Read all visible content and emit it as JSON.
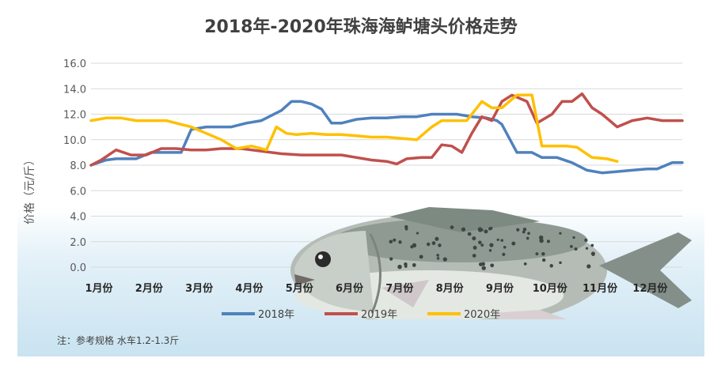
{
  "chart_data": {
    "type": "line",
    "title": "2018年-2020年珠海海鲈塘头价格走势",
    "ylabel": "价格（元/斤）",
    "xlabel": "",
    "ylim": [
      0,
      16
    ],
    "yticks": [
      "0.0",
      "2.0",
      "4.0",
      "6.0",
      "8.0",
      "10.0",
      "12.0",
      "14.0",
      "16.0"
    ],
    "categories": [
      "1月份",
      "2月份",
      "3月份",
      "4月份",
      "5月份",
      "6月份",
      "7月份",
      "8月份",
      "9月份",
      "10月份",
      "11月份",
      "12月份"
    ],
    "grid": true,
    "legend_position": "bottom",
    "x_scale": "month (1.0 = 1月份 … 12.0 = 12月份)",
    "series": [
      {
        "name": "2018年",
        "color": "#4f81bd",
        "x": [
          1.0,
          1.3,
          1.5,
          1.9,
          2.2,
          2.5,
          2.8,
          3.0,
          3.3,
          3.8,
          4.1,
          4.4,
          4.8,
          5.0,
          5.2,
          5.4,
          5.6,
          5.8,
          6.0,
          6.3,
          6.6,
          6.9,
          7.2,
          7.5,
          7.8,
          8.0,
          8.3,
          8.6,
          8.9,
          9.1,
          9.2,
          9.5,
          9.8,
          10.0,
          10.3,
          10.6,
          10.9,
          11.2,
          11.5,
          11.8,
          12.1,
          12.3,
          12.6,
          12.8
        ],
        "values": [
          8.0,
          8.4,
          8.5,
          8.5,
          9.0,
          9.0,
          9.0,
          10.8,
          11.0,
          11.0,
          11.3,
          11.5,
          12.3,
          13.0,
          13.0,
          12.8,
          12.4,
          11.3,
          11.3,
          11.6,
          11.7,
          11.7,
          11.8,
          11.8,
          12.0,
          12.0,
          12.0,
          11.8,
          11.7,
          11.5,
          11.2,
          9.0,
          9.0,
          8.6,
          8.6,
          8.2,
          7.6,
          7.4,
          7.5,
          7.6,
          7.7,
          7.7,
          8.2,
          8.2
        ]
      },
      {
        "name": "2019年",
        "color": "#c0504d",
        "x": [
          1.0,
          1.2,
          1.5,
          1.8,
          2.1,
          2.4,
          2.7,
          3.0,
          3.3,
          3.6,
          4.0,
          4.4,
          4.8,
          5.2,
          5.6,
          6.0,
          6.3,
          6.6,
          6.9,
          7.1,
          7.3,
          7.6,
          7.8,
          8.0,
          8.2,
          8.4,
          8.6,
          8.8,
          9.0,
          9.2,
          9.4,
          9.7,
          9.9,
          10.2,
          10.4,
          10.6,
          10.8,
          11.0,
          11.2,
          11.5,
          11.8,
          12.1,
          12.4,
          12.8
        ],
        "values": [
          8.0,
          8.4,
          9.2,
          8.8,
          8.8,
          9.3,
          9.3,
          9.2,
          9.2,
          9.3,
          9.3,
          9.1,
          8.9,
          8.8,
          8.8,
          8.8,
          8.6,
          8.4,
          8.3,
          8.1,
          8.5,
          8.6,
          8.6,
          9.6,
          9.5,
          9.0,
          10.5,
          11.8,
          11.5,
          13.0,
          13.5,
          13.0,
          11.3,
          12.0,
          13.0,
          13.0,
          13.6,
          12.5,
          12.0,
          11.0,
          11.5,
          11.7,
          11.5,
          11.5
        ]
      },
      {
        "name": "2020年",
        "color": "#ffc000",
        "x": [
          1.0,
          1.3,
          1.6,
          1.9,
          2.2,
          2.5,
          2.8,
          3.0,
          3.3,
          3.6,
          3.9,
          4.2,
          4.5,
          4.7,
          4.9,
          5.1,
          5.4,
          5.7,
          6.0,
          6.3,
          6.6,
          6.9,
          7.2,
          7.5,
          7.8,
          8.0,
          8.3,
          8.5,
          8.8,
          9.0,
          9.2,
          9.5,
          9.8,
          10.0,
          10.3,
          10.5,
          10.7,
          11.0,
          11.3,
          11.5
        ],
        "values": [
          11.5,
          11.7,
          11.7,
          11.5,
          11.5,
          11.5,
          11.2,
          11.0,
          10.5,
          10.0,
          9.3,
          9.5,
          9.2,
          11.0,
          10.5,
          10.4,
          10.5,
          10.4,
          10.4,
          10.3,
          10.2,
          10.2,
          10.1,
          10.0,
          11.0,
          11.5,
          11.5,
          11.5,
          13.0,
          12.5,
          12.5,
          13.5,
          13.5,
          9.5,
          9.5,
          9.5,
          9.4,
          8.6,
          8.5,
          8.3
        ]
      }
    ]
  },
  "note": "注：参考规格  水车1.2-1.3斤"
}
